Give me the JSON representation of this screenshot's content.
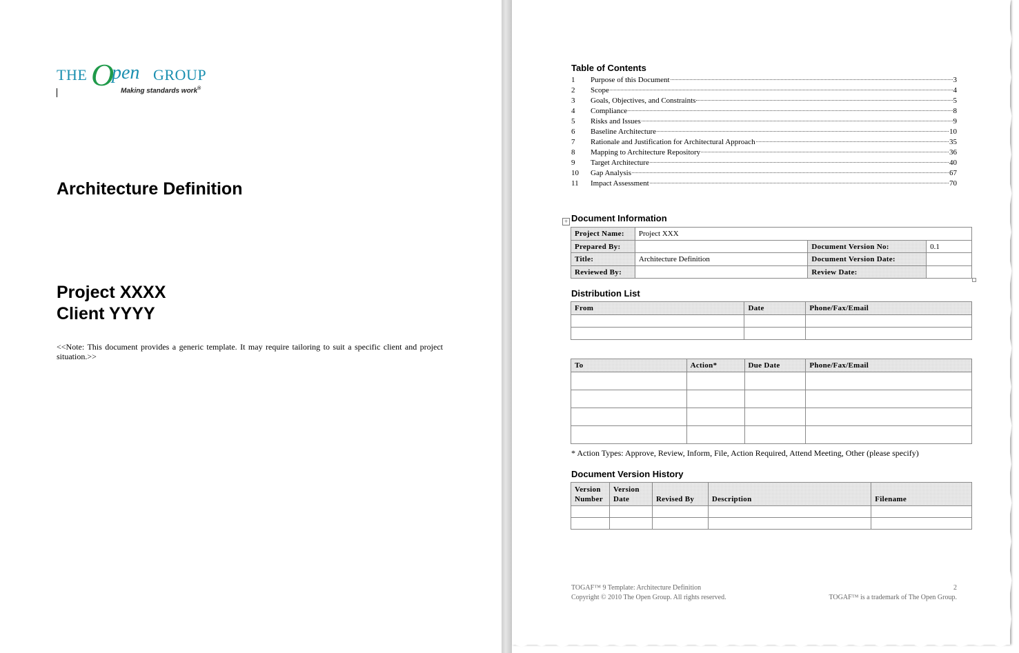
{
  "cover": {
    "logo": {
      "the": "THE",
      "o": "O",
      "pen": "pen",
      "group": "GROUP",
      "tagline": "Making standards work",
      "reg": "®"
    },
    "title": "Architecture Definition",
    "project": "Project XXXX",
    "client": "Client YYYY",
    "note": "<<Note: This document provides a generic template. It may require tailoring to suit a specific client and project situation.>>"
  },
  "toc": {
    "heading": "Table of Contents",
    "items": [
      {
        "num": "1",
        "label": "Purpose of this Document",
        "page": "3"
      },
      {
        "num": "2",
        "label": "Scope",
        "page": "4"
      },
      {
        "num": "3",
        "label": "Goals, Objectives, and Constraints",
        "page": "5"
      },
      {
        "num": "4",
        "label": "Compliance",
        "page": "8"
      },
      {
        "num": "5",
        "label": "Risks and Issues",
        "page": "9"
      },
      {
        "num": "6",
        "label": "Baseline Architecture",
        "page": "10"
      },
      {
        "num": "7",
        "label": "Rationale and Justification for Architectural Approach",
        "page": "35"
      },
      {
        "num": "8",
        "label": "Mapping to Architecture Repository",
        "page": "36"
      },
      {
        "num": "9",
        "label": "Target Architecture",
        "page": "40"
      },
      {
        "num": "10",
        "label": "Gap Analysis",
        "page": "67"
      },
      {
        "num": "11",
        "label": "Impact Assessment",
        "page": "70"
      }
    ]
  },
  "doc_info": {
    "heading": "Document Information",
    "handle_icon": "table-move-icon",
    "project_name_label": "Project Name:",
    "project_name": "Project XXX",
    "prepared_by_label": "Prepared By:",
    "prepared_by": "",
    "version_no_label": "Document Version No:",
    "version_no": "0.1",
    "title_label": "Title:",
    "title": "Architecture Definition",
    "version_date_label": "Document Version Date:",
    "version_date": "",
    "reviewed_by_label": "Reviewed By:",
    "reviewed_by": "",
    "review_date_label": "Review Date:",
    "review_date": ""
  },
  "distribution": {
    "heading": "Distribution List",
    "from_headers": [
      "From",
      "Date",
      "Phone/Fax/Email"
    ],
    "from_rows": 2,
    "to_headers": [
      "To",
      "Action*",
      "Due Date",
      "Phone/Fax/Email"
    ],
    "to_rows": 4,
    "footnote": "* Action Types: Approve, Review, Inform, File, Action Required, Attend Meeting, Other (please specify)"
  },
  "history": {
    "heading": "Document Version History",
    "headers": [
      "Version Number",
      "Version Date",
      "Revised By",
      "Description",
      "Filename"
    ],
    "rows": 2
  },
  "footer": {
    "left1": "TOGAF™ 9 Template: Architecture Definition",
    "left2": "Copyright © 2010 The Open Group. All rights reserved.",
    "page": "2",
    "right2": "TOGAF™ is a trademark of The Open Group."
  }
}
